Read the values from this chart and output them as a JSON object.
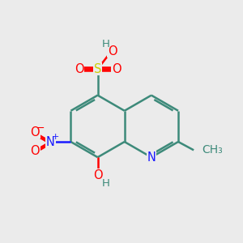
{
  "bg_color": "#ebebeb",
  "atom_colors": {
    "C": "#3d8a7a",
    "N": "#1a1aff",
    "O": "#ff0000",
    "S": "#cccc00",
    "H": "#3d8a7a"
  },
  "bond_color": "#3d8a7a",
  "bond_width": 1.8,
  "font_size": 10.5
}
